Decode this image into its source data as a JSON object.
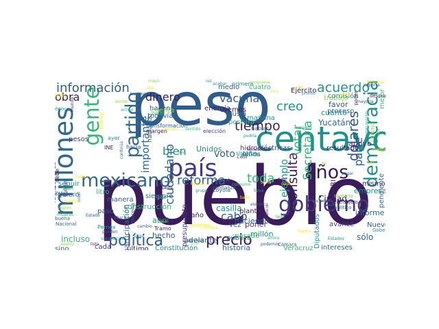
{
  "figure": {
    "type": "word cloud",
    "background": "#ffffff",
    "palette": [
      "#3b1c5a",
      "#2f5c8a",
      "#21908d",
      "#35b779",
      "#90d743",
      "#fde725",
      "#443983",
      "#31688e"
    ]
  },
  "words": [
    {
      "text": "peso",
      "color": "#2f5c8a"
    },
    {
      "text": "pueblo",
      "color": "#3b1c5a"
    },
    {
      "text": "centavo",
      "color": "#21908d"
    },
    {
      "text": "millones",
      "color": "#31688e"
    },
    {
      "text": "país",
      "color": "#443983"
    },
    {
      "text": "gente",
      "color": "#35b779"
    },
    {
      "text": "mexicano",
      "color": "#31688e"
    },
    {
      "text": "gobierno",
      "color": "#443983"
    },
    {
      "text": "democracia",
      "color": "#21908d"
    },
    {
      "text": "política",
      "color": "#2f5c8a"
    },
    {
      "text": "precio",
      "color": "#3b1c5a"
    },
    {
      "text": "partido",
      "color": "#31688e"
    },
    {
      "text": "años",
      "color": "#3b1c5a"
    },
    {
      "text": "información",
      "color": "#2f5c8a"
    },
    {
      "text": "dinero",
      "color": "#3b1c5a"
    },
    {
      "text": "vacuna",
      "color": "#2f5c8a"
    },
    {
      "text": "acuerdo",
      "color": "#21908d"
    },
    {
      "text": "tiempo",
      "color": "#3b1c5a"
    },
    {
      "text": "reforma",
      "color": "#31688e"
    },
    {
      "text": "consulta",
      "color": "#3b1c5a"
    },
    {
      "text": "dólares",
      "color": "#2f5c8a"
    },
    {
      "text": "ciudadano",
      "color": "#31688e"
    },
    {
      "text": "cabo",
      "color": "#2f5c8a"
    },
    {
      "text": "bien",
      "color": "#21908d"
    },
    {
      "text": "toda",
      "color": "#35b779"
    },
    {
      "text": "creo",
      "color": "#21908d"
    },
    {
      "text": "votar",
      "color": "#35b779"
    },
    {
      "text": "obra",
      "color": "#3b1c5a"
    },
    {
      "text": "importante",
      "color": "#31688e"
    },
    {
      "text": "ejemplo",
      "color": "#21908d"
    },
    {
      "text": "Secretaría",
      "color": "#35b779"
    },
    {
      "text": "parte",
      "color": "#2f5c8a"
    },
    {
      "text": "voto",
      "color": "#2f5c8a"
    },
    {
      "text": "sólo",
      "color": "#31688e"
    },
    {
      "text": "Unidos",
      "color": "#21908d"
    },
    {
      "text": "casilla",
      "color": "#21908d"
    },
    {
      "text": "historia",
      "color": "#31688e"
    },
    {
      "text": "Ciudad",
      "color": "#3b1c5a"
    },
    {
      "text": "Yucatán",
      "color": "#31688e"
    },
    {
      "text": "cuánto",
      "color": "#21908d"
    },
    {
      "text": "favor",
      "color": "#2f5c8a"
    },
    {
      "text": "apoyo",
      "color": "#443983"
    },
    {
      "text": "empresa",
      "color": "#21908d"
    },
    {
      "text": "mismo",
      "color": "#3b1c5a"
    },
    {
      "text": "informe",
      "color": "#31688e"
    },
    {
      "text": "incluso",
      "color": "#35b779"
    },
    {
      "text": "sino",
      "color": "#2f5c8a"
    },
    {
      "text": "cada",
      "color": "#443983"
    },
    {
      "text": "último",
      "color": "#3b1c5a"
    },
    {
      "text": "Constitución",
      "color": "#21908d"
    },
    {
      "text": "intereses",
      "color": "#31688e"
    },
    {
      "text": "Veracruz",
      "color": "#35b779"
    },
    {
      "text": "millón",
      "color": "#21908d"
    },
    {
      "text": "adelante",
      "color": "#2f5c8a"
    },
    {
      "text": "participación",
      "color": "#31688e"
    },
    {
      "text": "presupuesto",
      "color": "#443983"
    },
    {
      "text": "construcción",
      "color": "#35b779"
    },
    {
      "text": "siempre",
      "color": "#31688e"
    },
    {
      "text": "manera",
      "color": "#2f5c8a"
    },
    {
      "text": "planta",
      "color": "#3b1c5a"
    },
    {
      "text": "haciendo",
      "color": "#2f5c8a"
    },
    {
      "text": "poner",
      "color": "#443983"
    },
    {
      "text": "hecho",
      "color": "#2f5c8a"
    },
    {
      "text": "abril",
      "color": "#21908d"
    },
    {
      "text": "legisladores",
      "color": "#31688e"
    },
    {
      "text": "energía",
      "color": "#3b1c5a"
    },
    {
      "text": "hacen",
      "color": "#2f5c8a"
    },
    {
      "text": "todavía",
      "color": "#31688e"
    },
    {
      "text": "cuenta",
      "color": "#90d743"
    },
    {
      "text": "mañana",
      "color": "#21908d"
    },
    {
      "text": "trabajo",
      "color": "#90d743"
    },
    {
      "text": "proceso",
      "color": "#31688e"
    },
    {
      "text": "mejor",
      "color": "#35b779"
    },
    {
      "text": "medio",
      "color": "#2f5c8a"
    },
    {
      "text": "cuatro",
      "color": "#35b779"
    },
    {
      "text": "Ejército",
      "color": "#3b1c5a"
    },
    {
      "text": "hidroeléctricas",
      "color": "#443983"
    },
    {
      "text": "niños",
      "color": "#2f5c8a"
    },
    {
      "text": "daño",
      "color": "#3b1c5a"
    },
    {
      "text": "quiero",
      "color": "#31688e"
    },
    {
      "text": "seguir",
      "color": "#21908d"
    },
    {
      "text": "litro",
      "color": "#35b779"
    },
    {
      "text": "paso",
      "color": "#2f5c8a"
    },
    {
      "text": "pesos",
      "color": "#443983"
    },
    {
      "text": "resultado",
      "color": "#3b1c5a"
    },
    {
      "text": "pendiente",
      "color": "#31688e"
    },
    {
      "text": "Nuevo León",
      "color": "#2f5c8a"
    },
    {
      "text": "avance",
      "color": "#443983"
    },
    {
      "text": "pública",
      "color": "#31688e"
    },
    {
      "text": "Diputados",
      "color": "#21908d"
    },
    {
      "text": "vez",
      "color": "#2f5c8a"
    },
    {
      "text": "pasado",
      "color": "#35b779"
    },
    {
      "text": "PRI",
      "color": "#3b1c5a"
    },
    {
      "text": "Rusia",
      "color": "#2f5c8a"
    },
    {
      "text": "postura",
      "color": "#35b779"
    },
    {
      "text": "vemos",
      "color": "#3b1c5a"
    },
    {
      "text": "comisión",
      "color": "#21908d"
    },
    {
      "text": "hacia",
      "color": "#2f5c8a"
    },
    {
      "text": "casi",
      "color": "#443983"
    },
    {
      "text": "sistema",
      "color": "#21908d"
    },
    {
      "text": "hablando",
      "color": "#31688e"
    },
    {
      "text": "Transformación",
      "color": "#2f5c8a"
    },
    {
      "text": "margen",
      "color": "#3b1c5a"
    },
    {
      "text": "elección",
      "color": "#443983"
    },
    {
      "text": "hablar",
      "color": "#31688e"
    },
    {
      "text": "primera",
      "color": "#21908d"
    },
    {
      "text": "Revolución",
      "color": "#fde725"
    },
    {
      "text": "después",
      "color": "#3b1c5a"
    },
    {
      "text": "poder",
      "color": "#3b1c5a"
    },
    {
      "text": "corrupción",
      "color": "#35b779"
    },
    {
      "text": "semana",
      "color": "#90d743"
    },
    {
      "text": "extranjero",
      "color": "#3b1c5a"
    },
    {
      "text": "político",
      "color": "#2f5c8a"
    },
    {
      "text": "Nacional",
      "color": "#31688e"
    },
    {
      "text": "Mucho",
      "color": "#2f5c8a"
    },
    {
      "text": "Pemex",
      "color": "#21908d"
    },
    {
      "text": "Tramo",
      "color": "#3b1c5a"
    },
    {
      "text": "Cámara",
      "color": "#31688e"
    },
    {
      "text": "Loyola",
      "color": "#2f5c8a"
    },
    {
      "text": "morena",
      "color": "#2f5c8a"
    },
    {
      "text": "gas",
      "color": "#35b779"
    },
    {
      "text": "luz",
      "color": "#21908d"
    },
    {
      "text": "mayo",
      "color": "#90d743"
    },
    {
      "text": "dijo",
      "color": "#fde725"
    },
    {
      "text": "viendo",
      "color": "#35b779"
    },
    {
      "text": "tenemos",
      "color": "#31688e"
    },
    {
      "text": "aquí",
      "color": "#fde725"
    },
    {
      "text": "mundo",
      "color": "#3b1c5a"
    },
    {
      "text": "época",
      "color": "#21908d"
    },
    {
      "text": "nuevo",
      "color": "#fde725"
    },
    {
      "text": "ayer",
      "color": "#21908d"
    },
    {
      "text": "INE",
      "color": "#3b1c5a"
    },
    {
      "text": "Gobernación",
      "color": "#21908d"
    },
    {
      "text": "tomar",
      "color": "#443983"
    },
    {
      "text": "plan",
      "color": "#35b779"
    },
    {
      "text": "PAN",
      "color": "#2f5c8a"
    },
    {
      "text": "lista",
      "color": "#3b1c5a"
    },
    {
      "text": "asunto",
      "color": "#90d743"
    },
    {
      "text": "vacunación",
      "color": "#21908d"
    },
    {
      "text": "pueden",
      "color": "#2f5c8a"
    },
    {
      "text": "nivel",
      "color": "#31688e"
    },
    {
      "text": "debe",
      "color": "#3b1c5a"
    },
    {
      "text": "buena",
      "color": "#2f5c8a"
    },
    {
      "text": "podría",
      "color": "#21908d"
    },
    {
      "text": "continúa",
      "color": "#31688e"
    },
    {
      "text": "programa",
      "color": "#90d743"
    },
    {
      "text": "personas",
      "color": "#21908d"
    },
    {
      "text": "gracias",
      "color": "#fde725"
    },
    {
      "text": "sentido",
      "color": "#35b779"
    },
    {
      "text": "honestidad",
      "color": "#3b1c5a"
    },
    {
      "text": "mandato",
      "color": "#fde725"
    },
    {
      "text": "servicio",
      "color": "#2f5c8a"
    },
    {
      "text": "público",
      "color": "#443983"
    },
    {
      "text": "confianza",
      "color": "#31688e"
    },
    {
      "text": "Federal",
      "color": "#2f5c8a"
    },
    {
      "text": "lleva",
      "color": "#21908d"
    },
    {
      "text": "lado",
      "color": "#35b779"
    },
    {
      "text": "eléctrica",
      "color": "#31688e"
    },
    {
      "text": "Consejo",
      "color": "#90d743"
    },
    {
      "text": "cuestión",
      "color": "#fde725"
    },
    {
      "text": "mayoría",
      "color": "#2f5c8a"
    },
    {
      "text": "acabar",
      "color": "#21908d"
    },
    {
      "text": "ley",
      "color": "#35b779"
    },
    {
      "text": "final",
      "color": "#3b1c5a"
    },
    {
      "text": "nada",
      "color": "#fde725"
    },
    {
      "text": "sociedad",
      "color": "#31688e"
    },
    {
      "text": "Estados",
      "color": "#21908d"
    },
    {
      "text": "Tapata",
      "color": "#fde725"
    },
    {
      "text": "ahora",
      "color": "#35b779"
    },
    {
      "text": "podemos",
      "color": "#2f5c8a"
    },
    {
      "text": "mil",
      "color": "#90d743"
    },
    {
      "text": "México",
      "color": "#fde725"
    },
    {
      "text": "muerte",
      "color": "#3b1c5a"
    },
    {
      "text": "paga",
      "color": "#21908d"
    },
    {
      "text": "cambio",
      "color": "#2f5c8a"
    },
    {
      "text": "caso",
      "color": "#90d743"
    },
    {
      "text": "compra",
      "color": "#fde725"
    },
    {
      "text": "grupo",
      "color": "#21908d"
    },
    {
      "text": "consumo",
      "color": "#35b779"
    },
    {
      "text": "base",
      "color": "#fde725"
    },
    {
      "text": "importa",
      "color": "#2f5c8a"
    },
    {
      "text": "ver",
      "color": "#90d743"
    },
    {
      "text": "ahí",
      "color": "#fde725"
    },
    {
      "text": "pagar",
      "color": "#31688e"
    },
    {
      "text": "tema",
      "color": "#fde725"
    },
    {
      "text": "dar",
      "color": "#fde725"
    },
    {
      "text": "pronto",
      "color": "#21908d"
    },
    {
      "text": "leyes",
      "color": "#fde725"
    },
    {
      "text": "sector",
      "color": "#90d743"
    },
    {
      "text": "actual",
      "color": "#35b779"
    },
    {
      "text": "millón",
      "color": "#fde725"
    },
    {
      "text": "Estado",
      "color": "#2f5c8a"
    },
    {
      "text": "familia",
      "color": "#fde725"
    },
    {
      "text": "región",
      "color": "#90d743"
    },
    {
      "text": "mujeres",
      "color": "#35b779"
    },
    {
      "text": "hoy",
      "color": "#fde725"
    },
    {
      "text": "respeto",
      "color": "#21908d"
    },
    {
      "text": "fin",
      "color": "#90d743"
    }
  ]
}
